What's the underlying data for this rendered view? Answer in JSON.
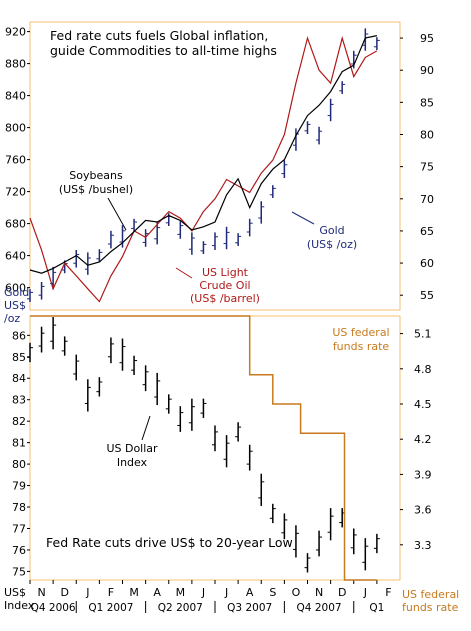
{
  "colors": {
    "gold": "#1f2a7a",
    "oil": "#b01818",
    "soybeans": "#000000",
    "dollar": "#000000",
    "fedfunds": "#c77a1e",
    "axis_text": "#000000",
    "accent_text": "#c77a1e",
    "frame": "#f0c070"
  },
  "chart_data": [
    {
      "type": "line",
      "title": "Fed rate cuts fuels Global inflation, guide Commodities to all-time highs",
      "title_lines": [
        "Fed rate cuts fuels Global inflation,",
        "guide Commodities to all-time highs"
      ],
      "left_axis": {
        "label_lines": [
          "Gold",
          "US$",
          "/oz"
        ],
        "ticks": [
          600,
          640,
          680,
          720,
          760,
          800,
          840,
          880,
          920
        ],
        "tick_labels": [
          "600",
          "640",
          "680",
          "720",
          "760",
          "800",
          "840",
          "880",
          "920"
        ],
        "range": [
          572,
          932
        ]
      },
      "right_axis": {
        "ticks": [
          55,
          60,
          65,
          70,
          75,
          80,
          85,
          90,
          95
        ],
        "tick_labels": [
          "55",
          "60",
          "65",
          "70",
          "75",
          "80",
          "85",
          "90",
          "95"
        ],
        "range": [
          52.7,
          97.5
        ]
      },
      "annotations": {
        "soybeans": [
          "Soybeans",
          "(US$ /bushel)"
        ],
        "gold": [
          "Gold",
          "(US$ /oz)"
        ],
        "oil": [
          "US Light",
          "Crude Oil",
          "(US$ /barrel)"
        ]
      },
      "series": [
        {
          "name": "Gold",
          "axis": "left",
          "style": "ohlc",
          "x": [
            0.0,
            0.5,
            1.0,
            1.5,
            2.0,
            2.5,
            3.0,
            3.5,
            4.0,
            4.5,
            5.0,
            5.5,
            6.0,
            6.5,
            7.0,
            7.5,
            8.0,
            8.5,
            9.0,
            9.5,
            10.0,
            10.5,
            11.0,
            11.5,
            12.0,
            12.5,
            13.0,
            13.5,
            14.0,
            14.5,
            15.0
          ],
          "values": [
            590,
            596,
            612,
            626,
            636,
            630,
            640,
            660,
            664,
            678,
            662,
            668,
            685,
            672,
            655,
            650,
            658,
            662,
            660,
            675,
            694,
            720,
            748,
            785,
            800,
            790,
            822,
            850,
            885,
            910,
            905
          ]
        },
        {
          "name": "US Light Crude Oil",
          "axis": "right",
          "values": [
            67,
            62,
            56,
            60,
            58,
            56,
            54,
            58,
            61,
            65,
            64,
            66,
            68,
            67,
            65,
            68,
            70,
            73,
            72,
            71,
            74,
            76,
            80,
            88,
            95,
            90,
            88,
            95,
            89,
            92,
            93
          ],
          "x": [
            0.0,
            0.5,
            1.0,
            1.5,
            2.0,
            2.5,
            3.0,
            3.5,
            4.0,
            4.5,
            5.0,
            5.5,
            6.0,
            6.5,
            7.0,
            7.5,
            8.0,
            8.5,
            9.0,
            9.5,
            10.0,
            10.5,
            11.0,
            11.5,
            12.0,
            12.5,
            13.0,
            13.5,
            14.0,
            14.5,
            15.0
          ]
        },
        {
          "name": "Soybeans",
          "axis": "left",
          "values": [
            622,
            618,
            624,
            632,
            640,
            628,
            632,
            645,
            656,
            670,
            684,
            682,
            690,
            684,
            672,
            676,
            682,
            716,
            736,
            700,
            730,
            748,
            760,
            790,
            815,
            828,
            845,
            870,
            878,
            912,
            915
          ],
          "x": [
            0.0,
            0.5,
            1.0,
            1.5,
            2.0,
            2.5,
            3.0,
            3.5,
            4.0,
            4.5,
            5.0,
            5.5,
            6.0,
            6.5,
            7.0,
            7.5,
            8.0,
            8.5,
            9.0,
            9.5,
            10.0,
            10.5,
            11.0,
            11.5,
            12.0,
            12.5,
            13.0,
            13.5,
            14.0,
            14.5,
            15.0
          ]
        }
      ]
    },
    {
      "type": "line",
      "title": "Fed Rate cuts drive US$ to 20-year Low",
      "left_axis": {
        "label_lines": [
          "US$",
          "Index"
        ],
        "ticks": [
          75,
          76,
          77,
          78,
          79,
          80,
          81,
          82,
          83,
          84,
          85,
          86
        ],
        "tick_labels": [
          "75",
          "76",
          "77",
          "78",
          "79",
          "80",
          "81",
          "82",
          "83",
          "84",
          "85",
          "86"
        ],
        "range": [
          74.6,
          86.9
        ]
      },
      "right_axis": {
        "label_lines": [
          "US federal",
          "funds rate"
        ],
        "ticks": [
          3.3,
          3.6,
          3.9,
          4.2,
          4.5,
          4.8,
          5.1
        ],
        "tick_labels": [
          "3.3",
          "3.6",
          "3.9",
          "4.2",
          "4.5",
          "4.8",
          "5.1"
        ],
        "range": [
          3.0,
          5.25
        ]
      },
      "annotations": {
        "dollar": [
          "US Dollar",
          "Index"
        ],
        "fedfunds": [
          "US federal",
          "funds rate"
        ]
      },
      "series": [
        {
          "name": "US Dollar Index",
          "axis": "left",
          "style": "ohlc",
          "x": [
            0.0,
            0.5,
            1.0,
            1.5,
            2.0,
            2.5,
            3.0,
            3.5,
            4.0,
            4.5,
            5.0,
            5.5,
            6.0,
            6.5,
            7.0,
            7.5,
            8.0,
            8.5,
            9.0,
            9.5,
            10.0,
            10.5,
            11.0,
            11.5,
            12.0,
            12.5,
            13.0,
            13.5,
            14.0,
            14.5,
            15.0
          ],
          "values": [
            85.2,
            85.8,
            86.1,
            85.5,
            84.5,
            83.2,
            83.6,
            85.3,
            85.1,
            84.6,
            84.0,
            83.5,
            82.8,
            82.1,
            82.3,
            82.6,
            81.2,
            80.6,
            81.5,
            80.3,
            78.8,
            77.7,
            77.1,
            76.4,
            75.4,
            76.3,
            77.2,
            77.5,
            76.4,
            75.8,
            76.3
          ]
        },
        {
          "name": "US federal funds rate",
          "axis": "right",
          "style": "step",
          "x": [
            0.0,
            9.5,
            9.5,
            10.5,
            10.5,
            11.7,
            11.7,
            12.7,
            12.7,
            13.6,
            13.6,
            14.0,
            14.0,
            14.6,
            14.6,
            15.0
          ],
          "values": [
            5.25,
            5.25,
            4.75,
            4.75,
            4.5,
            4.5,
            4.25,
            4.25,
            4.25,
            4.25,
            3.0,
            3.0,
            3.0,
            3.0,
            3.0,
            3.0
          ]
        }
      ]
    }
  ],
  "x_axis": {
    "month_labels": [
      "N",
      "D",
      "J",
      "F",
      "M",
      "A",
      "M",
      "J",
      "J",
      "A",
      "S",
      "O",
      "N",
      "D",
      "J",
      "F"
    ],
    "quarters": [
      "Q4 2006",
      "Q1 2007",
      "Q2 2007",
      "Q3 2007",
      "Q4 2007",
      "Q1"
    ]
  }
}
